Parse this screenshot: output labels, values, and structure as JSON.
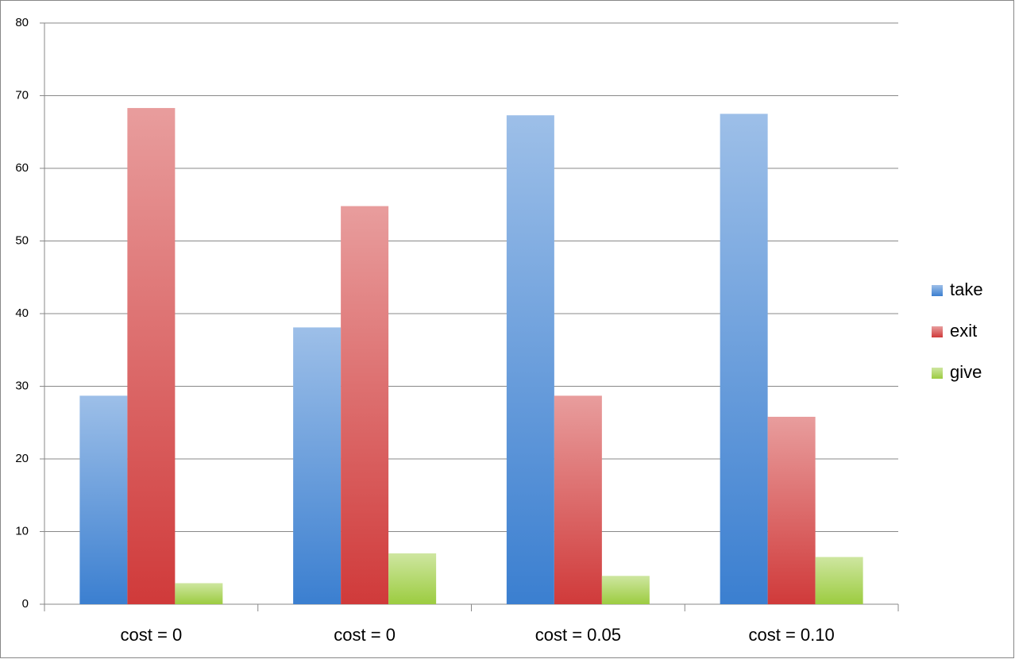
{
  "chart_data": {
    "type": "bar",
    "categories": [
      "cost = 0",
      "cost = 0",
      "cost = 0.05",
      "cost = 0.10"
    ],
    "series": [
      {
        "name": "take",
        "color": "#3b7fd0",
        "values": [
          28.7,
          38.1,
          67.3,
          67.5
        ]
      },
      {
        "name": "exit",
        "color": "#d03a3a",
        "values": [
          68.3,
          54.8,
          28.7,
          25.8
        ]
      },
      {
        "name": "give",
        "color": "#9ccc40",
        "values": [
          2.9,
          7.0,
          3.9,
          6.5
        ]
      }
    ],
    "ylim": [
      0,
      80
    ],
    "yticks": [
      0,
      10,
      20,
      30,
      40,
      50,
      60,
      70,
      80
    ],
    "grid": true,
    "legend": "right"
  }
}
